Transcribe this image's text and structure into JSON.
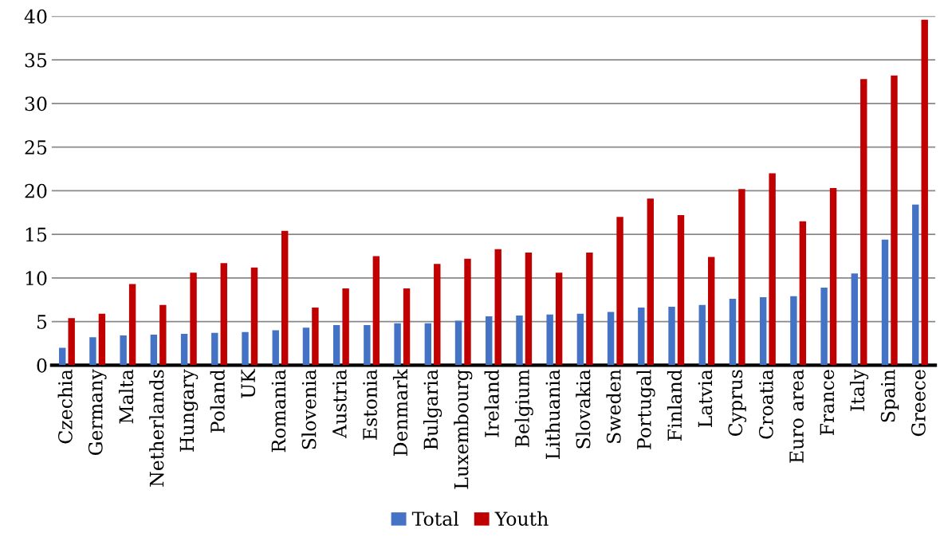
{
  "chart_data": {
    "type": "bar",
    "categories": [
      "Czechia",
      "Germany",
      "Malta",
      "Netherlands",
      "Hungary",
      "Poland",
      "UK",
      "Romania",
      "Slovenia",
      "Austria",
      "Estonia",
      "Denmark",
      "Bulgaria",
      "Luxembourg",
      "Ireland",
      "Belgium",
      "Lithuania",
      "Slovakia",
      "Sweden",
      "Portugal",
      "Finland",
      "Latvia",
      "Cyprus",
      "Croatia",
      "Euro area",
      "France",
      "Italy",
      "Spain",
      "Greece"
    ],
    "series": [
      {
        "name": "Total",
        "color": "#4472c4",
        "values": [
          2.0,
          3.2,
          3.4,
          3.5,
          3.6,
          3.7,
          3.8,
          4.0,
          4.3,
          4.6,
          4.6,
          4.8,
          4.8,
          5.1,
          5.6,
          5.7,
          5.8,
          5.9,
          6.1,
          6.6,
          6.7,
          6.9,
          7.6,
          7.8,
          7.9,
          8.9,
          10.5,
          14.4,
          18.4
        ]
      },
      {
        "name": "Youth",
        "color": "#c00000",
        "values": [
          5.4,
          5.9,
          9.3,
          6.9,
          10.6,
          11.7,
          11.2,
          15.4,
          6.6,
          8.8,
          12.5,
          8.8,
          11.6,
          12.2,
          13.3,
          12.9,
          10.6,
          12.9,
          17.0,
          19.1,
          17.2,
          12.4,
          20.2,
          22.0,
          16.5,
          20.3,
          32.8,
          33.2,
          39.6
        ]
      }
    ],
    "ylim": [
      0,
      40
    ],
    "yticks": [
      0,
      5,
      10,
      15,
      20,
      25,
      30,
      35,
      40
    ],
    "grid": "y",
    "legend": "bottom"
  }
}
